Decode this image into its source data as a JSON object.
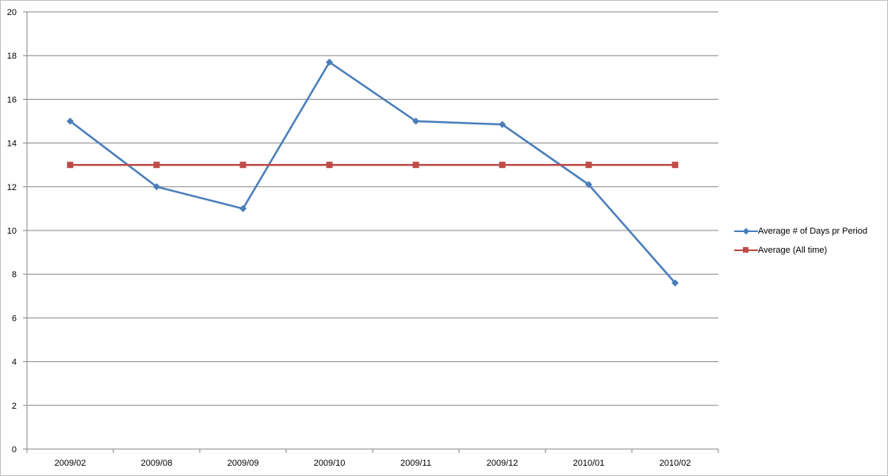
{
  "chart_data": {
    "type": "line",
    "categories": [
      "2009/02",
      "2009/08",
      "2009/09",
      "2009/10",
      "2009/11",
      "2009/12",
      "2010/01",
      "2010/02"
    ],
    "ylim": [
      0,
      20
    ],
    "yticks": [
      0,
      2,
      4,
      6,
      8,
      10,
      12,
      14,
      16,
      18,
      20
    ],
    "grid": true,
    "legend_position": "right",
    "series": [
      {
        "name": "Average # of Days pr Period",
        "color": "#4a7ebb",
        "marker": "diamond",
        "values": [
          15.0,
          12.0,
          11.0,
          17.7,
          15.0,
          14.85,
          12.1,
          7.6
        ]
      },
      {
        "name": "Average (All time)",
        "color": "#be4b48",
        "marker": "square",
        "values": [
          13,
          13,
          13,
          13,
          13,
          13,
          13,
          13
        ]
      }
    ]
  }
}
